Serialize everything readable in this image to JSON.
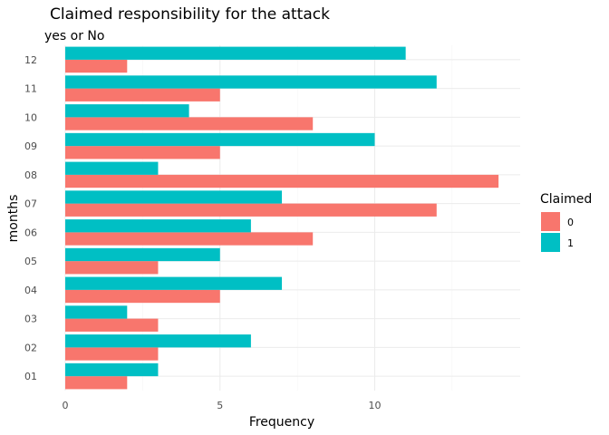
{
  "chart_data": {
    "type": "bar",
    "orientation": "horizontal",
    "title": "Claimed responsibility for the attack",
    "subtitle": "yes or No",
    "xlabel": "Frequency",
    "ylabel": "months",
    "categories": [
      "01",
      "02",
      "03",
      "04",
      "05",
      "06",
      "07",
      "08",
      "09",
      "10",
      "11",
      "12"
    ],
    "series": [
      {
        "name": "0",
        "color": "#F8766D",
        "values": [
          2,
          3,
          3,
          5,
          3,
          8,
          12,
          14,
          5,
          8,
          5,
          2
        ]
      },
      {
        "name": "1",
        "color": "#00BFC4",
        "values": [
          3,
          6,
          2,
          7,
          5,
          6,
          7,
          3,
          10,
          4,
          12,
          11
        ]
      }
    ],
    "xlim": [
      0,
      14.7
    ],
    "xticks": [
      0,
      5,
      10
    ],
    "legend": {
      "title": "Claimed",
      "placement": "right"
    },
    "grid": true
  }
}
